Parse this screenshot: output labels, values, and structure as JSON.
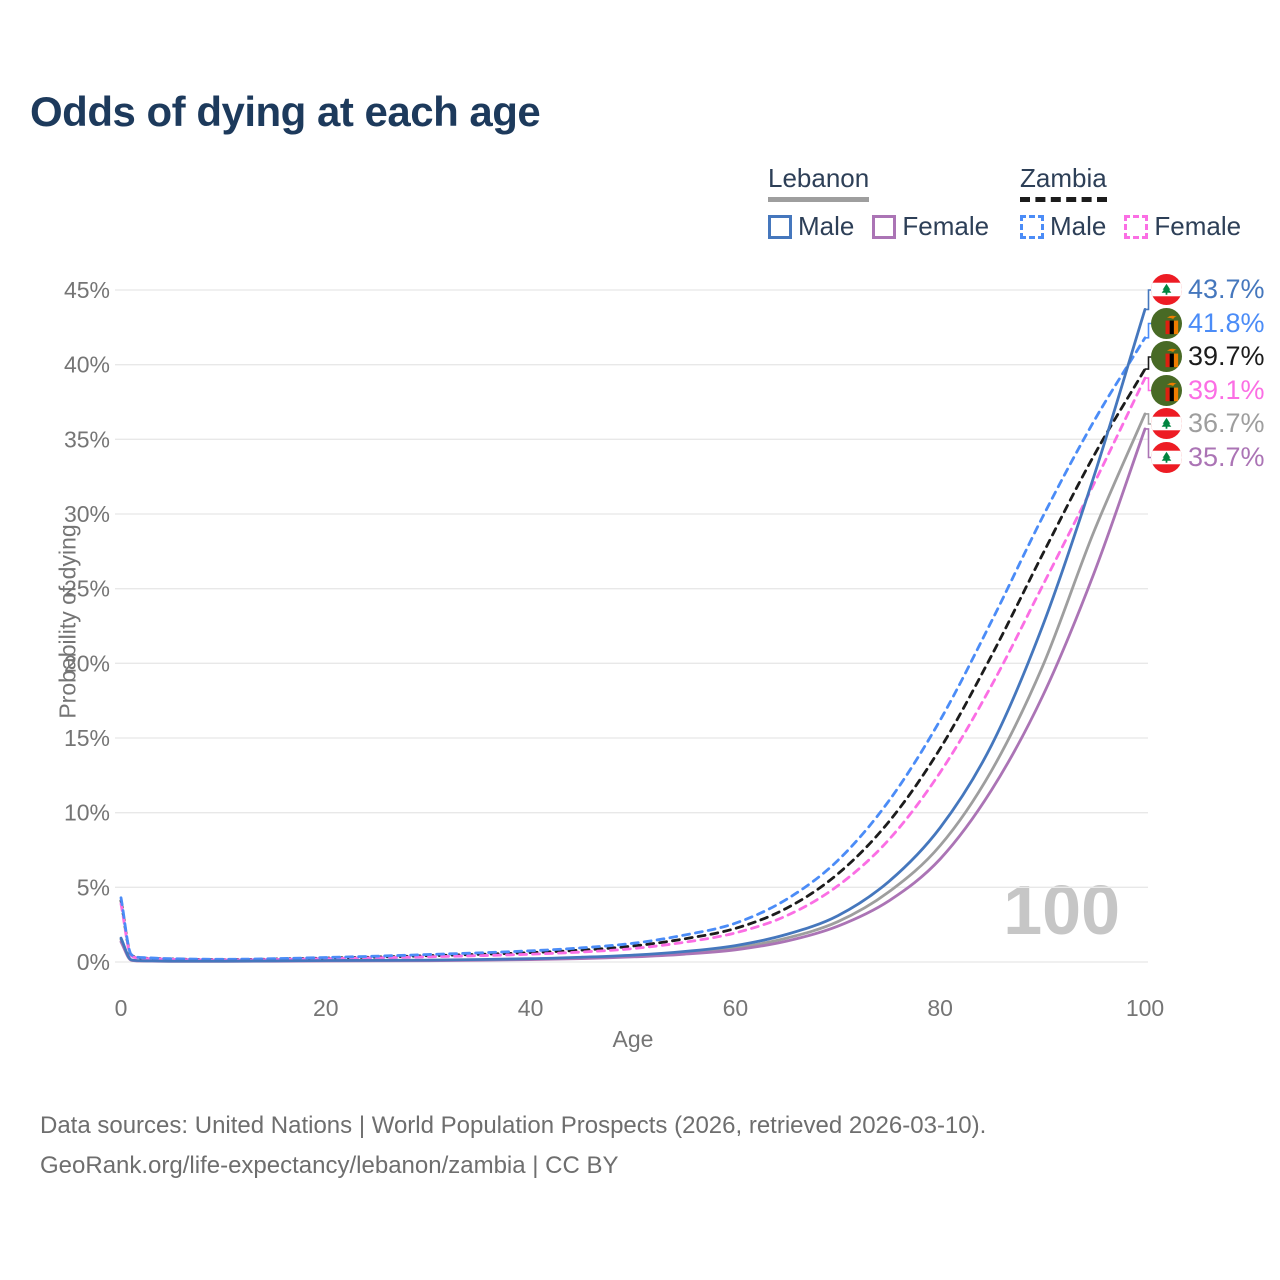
{
  "title": "Odds of dying at each age",
  "watermark": "100",
  "legend": {
    "groups": [
      {
        "name": "Lebanon",
        "line_style": "solid",
        "line_color": "#9e9e9e",
        "items": [
          {
            "label": "Male",
            "color": "#4577bd",
            "dashed": false
          },
          {
            "label": "Female",
            "color": "#ab74b5",
            "dashed": false
          }
        ]
      },
      {
        "name": "Zambia",
        "line_style": "dashed",
        "line_color": "#1c1c1c",
        "items": [
          {
            "label": "Male",
            "color": "#4b8cf7",
            "dashed": true
          },
          {
            "label": "Female",
            "color": "#fb6ee4",
            "dashed": true
          }
        ]
      }
    ]
  },
  "footer": {
    "line1": "Data sources: United Nations | World Population Prospects (2026, retrieved 2026-03-10).",
    "line2": "GeoRank.org/life-expectancy/lebanon/zambia | CC BY"
  },
  "chart_data": {
    "type": "line",
    "title": "Odds of dying at each age",
    "xlabel": "Age",
    "ylabel": "Probability of dying",
    "xlim": [
      0,
      100
    ],
    "ylim": [
      0,
      45
    ],
    "x_ticks": [
      0,
      20,
      40,
      60,
      80,
      100
    ],
    "y_ticks": [
      0,
      5,
      10,
      15,
      20,
      25,
      30,
      35,
      40,
      45
    ],
    "y_tick_suffix": "%",
    "grid": "horizontal",
    "legend_position": "top-right",
    "grid_color": "#e8e8e8",
    "tick_color": "#757575",
    "series": [
      {
        "id": "lebanon-avg",
        "name": "Lebanon (both sexes)",
        "country": "lebanon",
        "sex": "both",
        "color": "#9e9e9e",
        "dashed": false,
        "end_value": 36.7,
        "end_label": "36.7%",
        "points": [
          [
            0,
            1.5
          ],
          [
            1,
            0.13
          ],
          [
            2,
            0.08
          ],
          [
            5,
            0.055
          ],
          [
            10,
            0.055
          ],
          [
            20,
            0.085
          ],
          [
            30,
            0.11
          ],
          [
            40,
            0.19
          ],
          [
            45,
            0.27
          ],
          [
            50,
            0.4
          ],
          [
            55,
            0.6
          ],
          [
            60,
            0.95
          ],
          [
            65,
            1.6
          ],
          [
            70,
            2.7
          ],
          [
            75,
            4.7
          ],
          [
            80,
            7.8
          ],
          [
            85,
            12.8
          ],
          [
            90,
            19.8
          ],
          [
            95,
            28.8
          ],
          [
            100,
            36.7
          ]
        ]
      },
      {
        "id": "lebanon-female",
        "name": "Lebanon Female",
        "country": "lebanon",
        "sex": "female",
        "color": "#ab74b5",
        "dashed": false,
        "end_value": 35.7,
        "end_label": "35.7%",
        "points": [
          [
            0,
            1.35
          ],
          [
            1,
            0.12
          ],
          [
            2,
            0.07
          ],
          [
            5,
            0.05
          ],
          [
            10,
            0.05
          ],
          [
            20,
            0.07
          ],
          [
            30,
            0.09
          ],
          [
            40,
            0.16
          ],
          [
            45,
            0.23
          ],
          [
            50,
            0.34
          ],
          [
            55,
            0.52
          ],
          [
            60,
            0.82
          ],
          [
            65,
            1.4
          ],
          [
            70,
            2.4
          ],
          [
            75,
            4.1
          ],
          [
            80,
            6.9
          ],
          [
            85,
            11.5
          ],
          [
            90,
            17.8
          ],
          [
            95,
            26.0
          ],
          [
            100,
            35.7
          ]
        ]
      },
      {
        "id": "zambia-avg",
        "name": "Zambia (both sexes)",
        "country": "zambia",
        "sex": "both",
        "color": "#1c1c1c",
        "dashed": true,
        "end_value": 39.7,
        "end_label": "39.7%",
        "points": [
          [
            0,
            4.1
          ],
          [
            1,
            0.46
          ],
          [
            2,
            0.27
          ],
          [
            5,
            0.2
          ],
          [
            10,
            0.16
          ],
          [
            20,
            0.26
          ],
          [
            30,
            0.42
          ],
          [
            40,
            0.63
          ],
          [
            45,
            0.8
          ],
          [
            50,
            1.07
          ],
          [
            55,
            1.55
          ],
          [
            60,
            2.25
          ],
          [
            65,
            3.6
          ],
          [
            70,
            5.9
          ],
          [
            75,
            9.4
          ],
          [
            80,
            14.3
          ],
          [
            85,
            20.5
          ],
          [
            90,
            27.3
          ],
          [
            95,
            33.9
          ],
          [
            100,
            39.7
          ]
        ]
      },
      {
        "id": "zambia-female",
        "name": "Zambia Female",
        "country": "zambia",
        "sex": "female",
        "color": "#fb6ee4",
        "dashed": true,
        "end_value": 39.1,
        "end_label": "39.1%",
        "points": [
          [
            0,
            3.9
          ],
          [
            1,
            0.42
          ],
          [
            2,
            0.25
          ],
          [
            5,
            0.18
          ],
          [
            10,
            0.14
          ],
          [
            20,
            0.22
          ],
          [
            30,
            0.35
          ],
          [
            40,
            0.52
          ],
          [
            45,
            0.67
          ],
          [
            50,
            0.9
          ],
          [
            55,
            1.32
          ],
          [
            60,
            1.95
          ],
          [
            65,
            3.1
          ],
          [
            70,
            5.1
          ],
          [
            75,
            8.2
          ],
          [
            80,
            12.7
          ],
          [
            85,
            18.5
          ],
          [
            90,
            25.2
          ],
          [
            95,
            32.0
          ],
          [
            100,
            39.1
          ]
        ]
      },
      {
        "id": "zambia-male",
        "name": "Zambia Male",
        "country": "zambia",
        "sex": "male",
        "color": "#4b8cf7",
        "dashed": true,
        "end_value": 41.8,
        "end_label": "41.8%",
        "points": [
          [
            0,
            4.3
          ],
          [
            1,
            0.5
          ],
          [
            2,
            0.3
          ],
          [
            5,
            0.22
          ],
          [
            10,
            0.18
          ],
          [
            20,
            0.3
          ],
          [
            30,
            0.5
          ],
          [
            40,
            0.75
          ],
          [
            45,
            0.95
          ],
          [
            50,
            1.25
          ],
          [
            55,
            1.8
          ],
          [
            60,
            2.6
          ],
          [
            65,
            4.2
          ],
          [
            70,
            6.8
          ],
          [
            75,
            10.8
          ],
          [
            80,
            16.2
          ],
          [
            85,
            22.8
          ],
          [
            90,
            29.8
          ],
          [
            95,
            36.2
          ],
          [
            100,
            41.8
          ]
        ]
      },
      {
        "id": "lebanon-male",
        "name": "Lebanon Male",
        "country": "lebanon",
        "sex": "male",
        "color": "#4577bd",
        "dashed": false,
        "end_value": 43.7,
        "end_label": "43.7%",
        "points": [
          [
            0,
            1.6
          ],
          [
            1,
            0.15
          ],
          [
            2,
            0.09
          ],
          [
            5,
            0.06
          ],
          [
            10,
            0.06
          ],
          [
            20,
            0.1
          ],
          [
            30,
            0.13
          ],
          [
            40,
            0.22
          ],
          [
            45,
            0.32
          ],
          [
            50,
            0.46
          ],
          [
            55,
            0.7
          ],
          [
            60,
            1.1
          ],
          [
            65,
            1.85
          ],
          [
            70,
            3.1
          ],
          [
            75,
            5.4
          ],
          [
            80,
            9.0
          ],
          [
            85,
            14.5
          ],
          [
            90,
            22.5
          ],
          [
            95,
            32.5
          ],
          [
            100,
            43.7
          ]
        ]
      }
    ]
  }
}
